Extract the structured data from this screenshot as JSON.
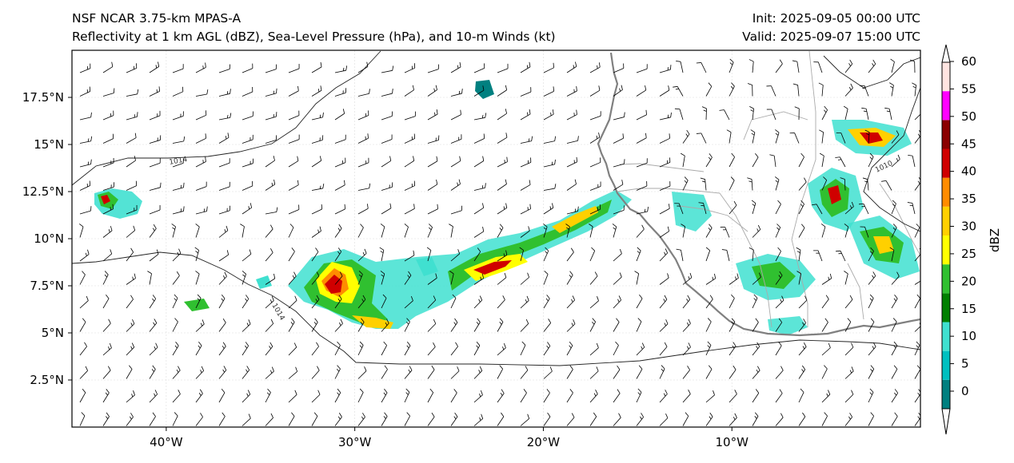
{
  "header": {
    "model_title": "NSF NCAR 3.75-km MPAS-A",
    "field_title": "Reflectivity at 1 km AGL (dBZ), Sea-Level Pressure (hPa), and 10-m Winds (kt)",
    "init_time": "Init: 2025-09-05 00:00 UTC",
    "valid_time": "Valid: 2025-09-07 15:00 UTC"
  },
  "map": {
    "lon_range": [
      -45,
      0
    ],
    "lat_range": [
      0,
      20
    ],
    "lon_ticks": [
      {
        "value": -40,
        "label": "40°W"
      },
      {
        "value": -30,
        "label": "30°W"
      },
      {
        "value": -20,
        "label": "20°W"
      },
      {
        "value": -10,
        "label": "10°W"
      }
    ],
    "lat_ticks": [
      {
        "value": 17.5,
        "label": "17.5°N"
      },
      {
        "value": 15,
        "label": "15°N"
      },
      {
        "value": 12.5,
        "label": "12.5°N"
      },
      {
        "value": 10,
        "label": "10°N"
      },
      {
        "value": 7.5,
        "label": "7.5°N"
      },
      {
        "value": 5,
        "label": "5°N"
      },
      {
        "value": 2.5,
        "label": "2.5°N"
      }
    ],
    "isobar_labels": [
      "1014",
      "1014",
      "1010"
    ]
  },
  "colorbar": {
    "label": "dBZ",
    "levels": [
      0,
      5,
      10,
      15,
      20,
      25,
      30,
      35,
      40,
      45,
      50,
      55,
      60
    ],
    "tick_labels": [
      "0",
      "5",
      "10",
      "15",
      "20",
      "25",
      "30",
      "35",
      "40",
      "45",
      "50",
      "55",
      "60"
    ],
    "colors": [
      "#008080",
      "#00c0c0",
      "#40e0d0",
      "#008000",
      "#30c030",
      "#ffff00",
      "#ffd000",
      "#ff8c00",
      "#d00000",
      "#8b0000",
      "#ff00ff",
      "#ffe4e1"
    ]
  }
}
